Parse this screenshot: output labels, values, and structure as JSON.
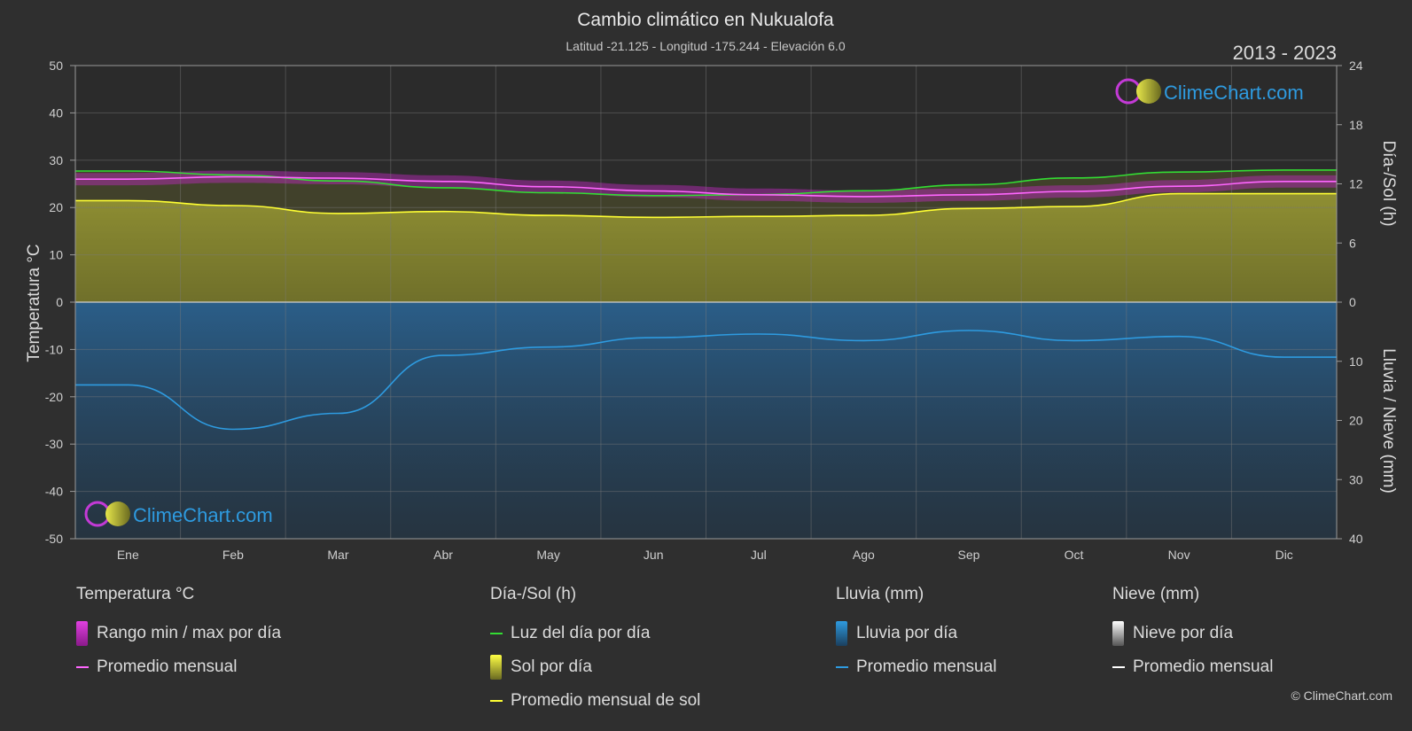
{
  "header": {
    "title": "Cambio climático en Nukualofa",
    "subtitle": "Latitud -21.125 - Longitud -175.244 - Elevación 6.0",
    "years": "2013 - 2023"
  },
  "brand": {
    "name": "ClimeChart.com",
    "copyright": "© ClimeChart.com"
  },
  "colors": {
    "background": "#2f2f2f",
    "temp_range": "#d81fd8",
    "temp_avg": "#ff66ff",
    "daylight": "#33dd33",
    "sun_fill": "#c8c832",
    "sun_avg": "#ffff33",
    "rain_fill": "#2a7fc0",
    "rain_avg": "#2e9be0",
    "snow_avg": "#ffffff"
  },
  "chart_data": {
    "type": "line",
    "categories": [
      "Ene",
      "Feb",
      "Mar",
      "Abr",
      "May",
      "Jun",
      "Jul",
      "Ago",
      "Sep",
      "Oct",
      "Nov",
      "Dic"
    ],
    "y_left": {
      "label": "Temperatura °C",
      "min": -50,
      "max": 50,
      "ticks": [
        50,
        40,
        30,
        20,
        10,
        0,
        -10,
        -20,
        -30,
        -40,
        -50
      ]
    },
    "y_right_top": {
      "label": "Día-/Sol (h)",
      "min": 0,
      "max": 24,
      "ticks": [
        24,
        18,
        12,
        6,
        0
      ]
    },
    "y_right_bottom": {
      "label": "Lluvia / Nieve (mm)",
      "min": 0,
      "max": 40,
      "ticks": [
        0,
        10,
        20,
        30,
        40
      ]
    },
    "grid": true,
    "series": [
      {
        "name": "Luz del día por día",
        "unit": "h",
        "values": [
          13.3,
          12.9,
          12.3,
          11.6,
          11.1,
          10.8,
          10.9,
          11.3,
          11.9,
          12.6,
          13.2,
          13.4
        ]
      },
      {
        "name": "Promedio mensual",
        "unit": "°C",
        "values": [
          26.0,
          26.5,
          26.2,
          25.5,
          24.4,
          23.5,
          22.7,
          22.3,
          22.7,
          23.4,
          24.5,
          25.5
        ]
      },
      {
        "name": "Promedio mensual de sol",
        "unit": "h",
        "values": [
          10.3,
          9.8,
          9.0,
          9.2,
          8.8,
          8.6,
          8.7,
          8.8,
          9.5,
          9.7,
          11.0,
          11.0
        ]
      },
      {
        "name": "Promedio mensual",
        "unit": "mm",
        "values": [
          14.0,
          21.5,
          18.8,
          9.0,
          7.6,
          6.0,
          5.4,
          6.5,
          4.8,
          6.5,
          5.8,
          9.3
        ]
      }
    ]
  },
  "legend": {
    "groups": [
      {
        "heading": "Temperatura °C",
        "items": [
          {
            "label": "Rango min / max por día",
            "swatch": "box",
            "color": "#d81fd8"
          },
          {
            "label": "Promedio mensual",
            "swatch": "line",
            "color": "#ff66ff"
          }
        ]
      },
      {
        "heading": "Día-/Sol (h)",
        "items": [
          {
            "label": "Luz del día por día",
            "swatch": "line",
            "color": "#33dd33"
          },
          {
            "label": "Sol por día",
            "swatch": "box",
            "color": "#c8c832"
          },
          {
            "label": "Promedio mensual de sol",
            "swatch": "line",
            "color": "#ffff33"
          }
        ]
      },
      {
        "heading": "Lluvia (mm)",
        "items": [
          {
            "label": "Lluvia por día",
            "swatch": "box",
            "color": "#2a7fc0"
          },
          {
            "label": "Promedio mensual",
            "swatch": "line",
            "color": "#2e9be0"
          }
        ]
      },
      {
        "heading": "Nieve (mm)",
        "items": [
          {
            "label": "Nieve por día",
            "swatch": "box",
            "color": "#dddddd"
          },
          {
            "label": "Promedio mensual",
            "swatch": "line",
            "color": "#ffffff"
          }
        ]
      }
    ]
  }
}
